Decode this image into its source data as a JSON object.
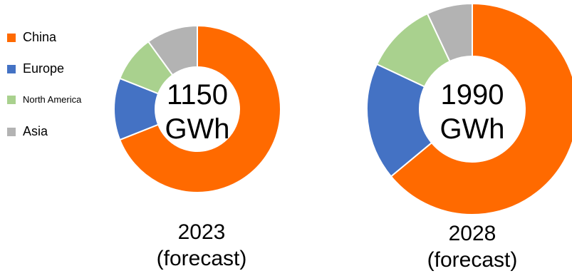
{
  "legend": [
    {
      "label": "China",
      "color": "#FF6A00"
    },
    {
      "label": "Europe",
      "color": "#4472C4"
    },
    {
      "label": "North America",
      "color": "#A9D18E"
    },
    {
      "label": "Asia",
      "color": "#B3B3B3"
    }
  ],
  "chart_data": [
    {
      "type": "pie",
      "style": "donut",
      "categories": [
        "China",
        "Europe",
        "North America",
        "Asia"
      ],
      "values": [
        69,
        12,
        9,
        10
      ],
      "center_label": [
        "1150",
        "GWh"
      ],
      "caption": [
        "2023",
        "(forecast)"
      ]
    },
    {
      "type": "pie",
      "style": "donut",
      "categories": [
        "China",
        "Europe",
        "North America",
        "Asia"
      ],
      "values": [
        64,
        18,
        11,
        7
      ],
      "center_label": [
        "1990",
        "GWh"
      ],
      "caption": [
        "2028",
        "(forecast)"
      ]
    }
  ]
}
